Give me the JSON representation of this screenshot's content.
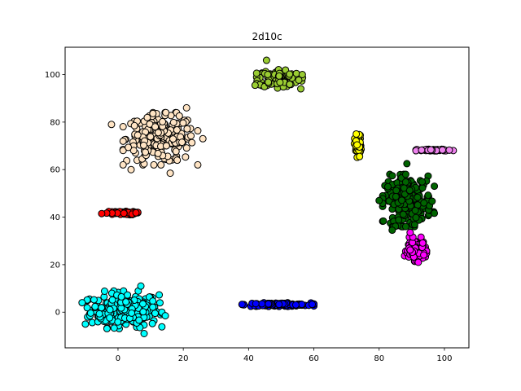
{
  "chart_data": {
    "type": "scatter",
    "title": "2d10c",
    "xlabel": "",
    "ylabel": "",
    "xlim": [
      -16.2,
      107.5
    ],
    "ylim": [
      -15.0,
      111.5
    ],
    "xticks": [
      0,
      20,
      40,
      60,
      80,
      100
    ],
    "yticks": [
      0,
      20,
      40,
      60,
      80,
      100
    ],
    "grid": false,
    "legend": "none",
    "clusters": [
      {
        "color": "#00ffff",
        "cx": 2,
        "cy": 1,
        "sx": 5.2,
        "sy": 3.6,
        "n": 260,
        "outliers": [
          [
            -10,
            -5
          ],
          [
            7,
            11
          ],
          [
            14.5,
            -1.5
          ],
          [
            8,
            -9
          ],
          [
            -11,
            4
          ]
        ]
      },
      {
        "color": "#ffe4c4",
        "cx": 13,
        "cy": 73,
        "sx": 5.2,
        "sy": 5.0,
        "n": 230,
        "outliers": [
          [
            4,
            60
          ],
          [
            21,
            86
          ],
          [
            16,
            58.5
          ],
          [
            26,
            73
          ],
          [
            -2,
            79
          ]
        ]
      },
      {
        "color": "#0000ff",
        "cx": 49,
        "cy": 3.2,
        "sx": 5.0,
        "sy": 0.35,
        "n": 110,
        "outliers": [
          [
            38,
            3.3
          ],
          [
            59.5,
            3.3
          ]
        ]
      },
      {
        "color": "#9acd32",
        "cx": 49.5,
        "cy": 98.5,
        "sx": 3.2,
        "sy": 1.9,
        "n": 130,
        "outliers": [
          [
            45.5,
            106
          ],
          [
            42,
            95.5
          ],
          [
            56,
            94
          ]
        ]
      },
      {
        "color": "#ff0000",
        "cx": 1,
        "cy": 41.7,
        "sx": 2.3,
        "sy": 0.35,
        "n": 80,
        "outliers": [
          [
            -5,
            41.5
          ],
          [
            5.5,
            41.8
          ]
        ]
      },
      {
        "color": "#ffff00",
        "cx": 73.5,
        "cy": 70,
        "sx": 0.5,
        "sy": 2.2,
        "n": 50,
        "outliers": [
          [
            73,
            75
          ],
          [
            74,
            65.5
          ]
        ]
      },
      {
        "color": "#ee82ee",
        "cx": 97,
        "cy": 68.2,
        "sx": 2.6,
        "sy": 0.2,
        "n": 60,
        "outliers": [
          [
            93,
            68.2
          ],
          [
            101.5,
            68.2
          ]
        ]
      },
      {
        "color": "#006400",
        "cx": 89,
        "cy": 47,
        "sx": 3.6,
        "sy": 5.0,
        "n": 230,
        "outliers": [
          [
            88.5,
            62.5
          ],
          [
            84,
            34.5
          ],
          [
            80,
            47
          ]
        ]
      },
      {
        "color": "#ff00ff",
        "cx": 91,
        "cy": 26.5,
        "sx": 1.6,
        "sy": 2.3,
        "n": 110,
        "outliers": [
          [
            89.5,
            33.5
          ],
          [
            92,
            21
          ]
        ]
      }
    ]
  }
}
